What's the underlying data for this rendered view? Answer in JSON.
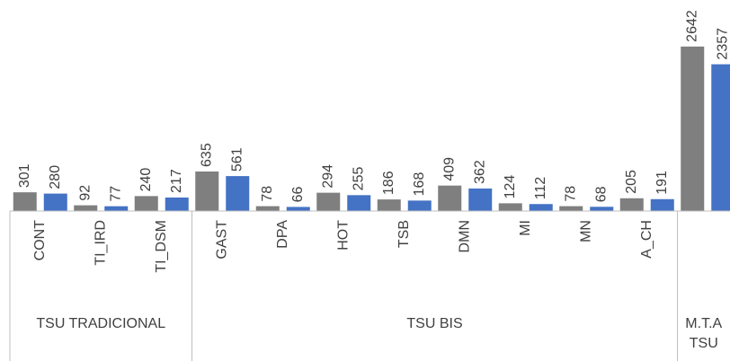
{
  "chart_data": {
    "type": "bar",
    "groups": [
      {
        "label": "TSU TRADICIONAL",
        "categories": [
          "CONT",
          "TI_IRD",
          "TI_DSM"
        ]
      },
      {
        "label": "TSU BIS",
        "categories": [
          "GAST",
          "DPA",
          "HOT",
          "TSB",
          "DMN",
          "MI",
          "MN",
          "A_CH"
        ]
      },
      {
        "label": "M.T.A TSU",
        "categories": [
          null
        ]
      }
    ],
    "series": [
      {
        "color": "#7f7f7f",
        "values": [
          301,
          92,
          240,
          635,
          78,
          294,
          186,
          409,
          124,
          78,
          205,
          2642
        ]
      },
      {
        "color": "#4472c4",
        "values": [
          280,
          77,
          217,
          561,
          66,
          255,
          168,
          362,
          112,
          68,
          191,
          2357
        ]
      }
    ],
    "ylim": [
      0,
      3000
    ]
  }
}
